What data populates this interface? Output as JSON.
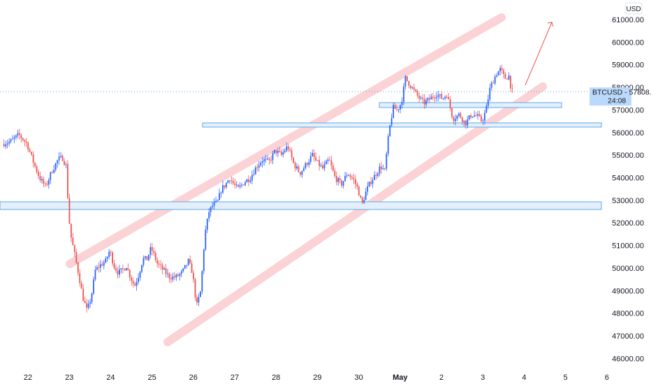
{
  "chart_data": {
    "type": "candlestick",
    "symbol": "BTCUSD",
    "currency": "USD",
    "last_price": "57808.22",
    "countdown": "24:08",
    "ylim": [
      45700,
      62200
    ],
    "y_ticks": [
      {
        "value": 46000,
        "label": "46000.00"
      },
      {
        "value": 47000,
        "label": "47000.00"
      },
      {
        "value": 48000,
        "label": "48000.00"
      },
      {
        "value": 49000,
        "label": "49000.00"
      },
      {
        "value": 50000,
        "label": "50000.00"
      },
      {
        "value": 51000,
        "label": "51000.00"
      },
      {
        "value": 52000,
        "label": "52000.00"
      },
      {
        "value": 53000,
        "label": "53000.00"
      },
      {
        "value": 54000,
        "label": "54000.00"
      },
      {
        "value": 55000,
        "label": "55000.00"
      },
      {
        "value": 56000,
        "label": "56000.00"
      },
      {
        "value": 57000,
        "label": "57000.00"
      },
      {
        "value": 58000,
        "label": "58000.00"
      },
      {
        "value": 59000,
        "label": "59000.00"
      },
      {
        "value": 60000,
        "label": "60000.00"
      },
      {
        "value": 61000,
        "label": "61000.00"
      }
    ],
    "x_ticks": [
      {
        "day": 0,
        "label": "22",
        "bold": false
      },
      {
        "day": 1,
        "label": "23",
        "bold": false
      },
      {
        "day": 2,
        "label": "24",
        "bold": false
      },
      {
        "day": 3,
        "label": "25",
        "bold": false
      },
      {
        "day": 4,
        "label": "26",
        "bold": false
      },
      {
        "day": 5,
        "label": "27",
        "bold": false
      },
      {
        "day": 6,
        "label": "28",
        "bold": false
      },
      {
        "day": 7,
        "label": "29",
        "bold": false
      },
      {
        "day": 8,
        "label": "30",
        "bold": false
      },
      {
        "day": 9,
        "label": "May",
        "bold": true
      },
      {
        "day": 10,
        "label": "2",
        "bold": false
      },
      {
        "day": 11,
        "label": "3",
        "bold": false
      },
      {
        "day": 12,
        "label": "4",
        "bold": false
      },
      {
        "day": 13,
        "label": "5",
        "bold": false
      },
      {
        "day": 14,
        "label": "6",
        "bold": false
      }
    ],
    "price_path": [
      [
        -0.6,
        55500
      ],
      [
        -0.4,
        55600
      ],
      [
        -0.2,
        55900
      ],
      [
        0.0,
        55500
      ],
      [
        0.15,
        54700
      ],
      [
        0.3,
        54000
      ],
      [
        0.45,
        53600
      ],
      [
        0.6,
        54300
      ],
      [
        0.75,
        54800
      ],
      [
        0.85,
        54900
      ],
      [
        0.95,
        54500
      ],
      [
        1.0,
        52500
      ],
      [
        1.05,
        51500
      ],
      [
        1.15,
        50600
      ],
      [
        1.25,
        49700
      ],
      [
        1.35,
        48700
      ],
      [
        1.45,
        48100
      ],
      [
        1.55,
        48700
      ],
      [
        1.65,
        49900
      ],
      [
        1.75,
        50100
      ],
      [
        1.9,
        50300
      ],
      [
        2.0,
        50800
      ],
      [
        2.1,
        50100
      ],
      [
        2.2,
        49800
      ],
      [
        2.3,
        49900
      ],
      [
        2.4,
        50100
      ],
      [
        2.5,
        49600
      ],
      [
        2.6,
        49200
      ],
      [
        2.7,
        49700
      ],
      [
        2.8,
        50400
      ],
      [
        2.9,
        50400
      ],
      [
        3.0,
        50900
      ],
      [
        3.15,
        50200
      ],
      [
        3.3,
        49900
      ],
      [
        3.45,
        49600
      ],
      [
        3.6,
        49600
      ],
      [
        3.75,
        49800
      ],
      [
        3.9,
        50300
      ],
      [
        4.0,
        49800
      ],
      [
        4.1,
        48300
      ],
      [
        4.2,
        49000
      ],
      [
        4.3,
        51500
      ],
      [
        4.4,
        52500
      ],
      [
        4.5,
        52800
      ],
      [
        4.6,
        52900
      ],
      [
        4.7,
        53500
      ],
      [
        4.8,
        53700
      ],
      [
        4.9,
        54000
      ],
      [
        5.0,
        53700
      ],
      [
        5.1,
        53500
      ],
      [
        5.25,
        53800
      ],
      [
        5.4,
        54000
      ],
      [
        5.55,
        54500
      ],
      [
        5.7,
        54800
      ],
      [
        5.85,
        54700
      ],
      [
        6.0,
        55200
      ],
      [
        6.15,
        55000
      ],
      [
        6.3,
        55400
      ],
      [
        6.45,
        54600
      ],
      [
        6.6,
        54200
      ],
      [
        6.75,
        54600
      ],
      [
        6.9,
        55000
      ],
      [
        7.0,
        54700
      ],
      [
        7.15,
        54400
      ],
      [
        7.3,
        54800
      ],
      [
        7.45,
        54000
      ],
      [
        7.6,
        53700
      ],
      [
        7.75,
        54200
      ],
      [
        7.9,
        53900
      ],
      [
        8.0,
        53500
      ],
      [
        8.1,
        52800
      ],
      [
        8.2,
        53400
      ],
      [
        8.3,
        53800
      ],
      [
        8.45,
        54200
      ],
      [
        8.55,
        54500
      ],
      [
        8.65,
        54300
      ],
      [
        8.75,
        56000
      ],
      [
        8.85,
        57100
      ],
      [
        8.95,
        57000
      ],
      [
        9.05,
        57300
      ],
      [
        9.15,
        58400
      ],
      [
        9.3,
        58000
      ],
      [
        9.45,
        57600
      ],
      [
        9.6,
        57300
      ],
      [
        9.75,
        57500
      ],
      [
        9.9,
        57700
      ],
      [
        10.05,
        57500
      ],
      [
        10.15,
        57700
      ],
      [
        10.3,
        56600
      ],
      [
        10.45,
        56800
      ],
      [
        10.6,
        56400
      ],
      [
        10.75,
        56800
      ],
      [
        10.9,
        56700
      ],
      [
        11.0,
        56500
      ],
      [
        11.1,
        57000
      ],
      [
        11.2,
        58000
      ],
      [
        11.35,
        58600
      ],
      [
        11.45,
        58800
      ],
      [
        11.55,
        58400
      ],
      [
        11.65,
        58500
      ],
      [
        11.72,
        57808
      ]
    ]
  }
}
